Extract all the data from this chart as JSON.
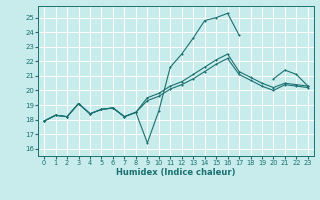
{
  "xlabel": "Humidex (Indice chaleur)",
  "xlim": [
    -0.5,
    23.5
  ],
  "ylim": [
    15.5,
    25.8
  ],
  "yticks": [
    16,
    17,
    18,
    19,
    20,
    21,
    22,
    23,
    24,
    25
  ],
  "xticks": [
    0,
    1,
    2,
    3,
    4,
    5,
    6,
    7,
    8,
    9,
    10,
    11,
    12,
    13,
    14,
    15,
    16,
    17,
    18,
    19,
    20,
    21,
    22,
    23
  ],
  "bg_color": "#c8ecec",
  "line_color": "#1a7070",
  "grid_color": "#ffffff",
  "series1": [
    17.9,
    18.3,
    18.2,
    19.1,
    18.4,
    18.7,
    18.8,
    18.2,
    18.5,
    16.4,
    18.6,
    21.6,
    22.5,
    23.6,
    24.8,
    25.0,
    25.3,
    23.8,
    null,
    null,
    20.8,
    21.4,
    21.1,
    20.3
  ],
  "series2": [
    17.9,
    18.3,
    18.2,
    19.1,
    18.4,
    18.7,
    18.8,
    18.2,
    18.5,
    19.3,
    19.6,
    20.1,
    20.4,
    20.8,
    21.3,
    21.8,
    22.2,
    21.1,
    20.7,
    20.3,
    20.0,
    20.4,
    20.3,
    20.2
  ],
  "series3": [
    17.9,
    18.3,
    18.2,
    19.1,
    18.4,
    18.7,
    18.8,
    18.2,
    18.5,
    19.5,
    19.8,
    20.3,
    20.6,
    21.1,
    21.6,
    22.1,
    22.5,
    21.3,
    20.9,
    20.5,
    20.2,
    20.5,
    20.4,
    20.3
  ]
}
